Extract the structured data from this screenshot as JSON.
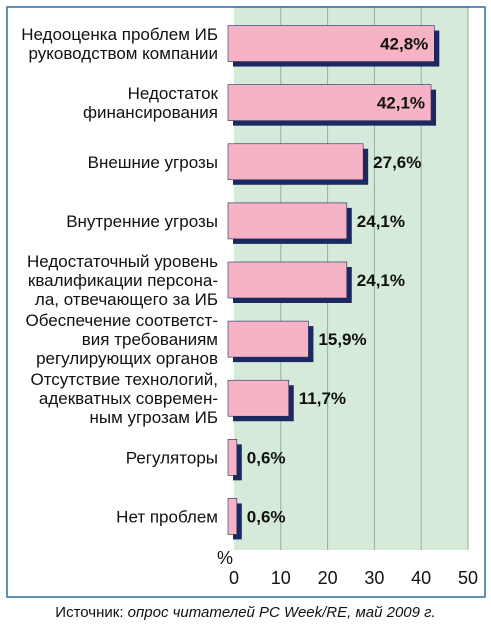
{
  "chart_data": {
    "type": "bar",
    "orientation": "horizontal",
    "categories": [
      [
        "Недооценка проблем ИБ",
        "руководством компании"
      ],
      [
        "Недостаток",
        "финансирования"
      ],
      [
        "Внешние угрозы"
      ],
      [
        "Внутренние угрозы"
      ],
      [
        "Недостаточный уровень",
        "квалификации персона-",
        "ла, отвечающего за ИБ"
      ],
      [
        "Обеспечение соответст-",
        "вия требованиям",
        "регулирующих органов"
      ],
      [
        "Отсутствие технологий,",
        "адекватных современ-",
        "ным угрозам ИБ"
      ],
      [
        "Регуляторы"
      ],
      [
        "Нет проблем"
      ]
    ],
    "values": [
      42.8,
      42.1,
      27.6,
      24.1,
      24.1,
      15.9,
      11.7,
      0.6,
      0.6
    ],
    "value_labels": [
      "42,8%",
      "42,1%",
      "27,6%",
      "24,1%",
      "24,1%",
      "15,9%",
      "11,7%",
      "0,6%",
      "0,6%"
    ],
    "x_ticks": [
      "0",
      "10",
      "20",
      "30",
      "40",
      "50"
    ],
    "xlim": [
      0,
      50
    ],
    "axis_unit": "%",
    "grid": true,
    "colors": {
      "bar": "#f7b3c6",
      "bar_edge": "#1a2a60",
      "bar_shadow": "#1a2a60",
      "plot_bg": "#d5ead9",
      "grid": "#8fb39a",
      "frame": "#2a6e9e"
    }
  },
  "source": {
    "prefix": "Источник: ",
    "italic": "опрос читателей PC Week/RE, май 2009 г."
  }
}
